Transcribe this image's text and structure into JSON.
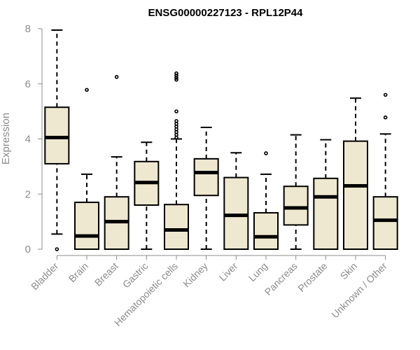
{
  "chart_data": {
    "type": "box",
    "title": "ENSG00000227123 - RPL12P44",
    "xlabel": "",
    "ylabel": "Expression",
    "ylim": [
      0,
      8
    ],
    "yticks": [
      0,
      2,
      4,
      6,
      8
    ],
    "grid": false,
    "categories": [
      "Bladder",
      "Brain",
      "Breast",
      "Gastric",
      "Hematopoietic cells",
      "Kidney",
      "Liver",
      "Lung",
      "Pancreas",
      "Prostate",
      "Skin",
      "Unknown / Other"
    ],
    "boxes": [
      {
        "category": "Bladder",
        "min": 0.55,
        "q1": 3.1,
        "median": 4.05,
        "q3": 5.15,
        "max": 7.95,
        "outliers": [
          0
        ]
      },
      {
        "category": "Brain",
        "min": 0,
        "q1": 0,
        "median": 0.48,
        "q3": 1.7,
        "max": 2.72,
        "outliers": [
          5.78
        ]
      },
      {
        "category": "Breast",
        "min": 0,
        "q1": 0,
        "median": 1.0,
        "q3": 1.9,
        "max": 3.35,
        "outliers": [
          6.25
        ]
      },
      {
        "category": "Gastric",
        "min": 0,
        "q1": 1.6,
        "median": 2.42,
        "q3": 3.18,
        "max": 3.88,
        "outliers": []
      },
      {
        "category": "Hematopoietic cells",
        "min": 0,
        "q1": 0,
        "median": 0.7,
        "q3": 1.62,
        "max": 4.0,
        "outliers": [
          4.05,
          4.15,
          4.25,
          4.35,
          4.45,
          4.55,
          4.65,
          5.0,
          6.15,
          6.22,
          6.3,
          6.38
        ]
      },
      {
        "category": "Kidney",
        "min": 0,
        "q1": 1.95,
        "median": 2.78,
        "q3": 3.28,
        "max": 4.42,
        "outliers": []
      },
      {
        "category": "Liver",
        "min": 0,
        "q1": 0,
        "median": 1.23,
        "q3": 2.6,
        "max": 3.5,
        "outliers": []
      },
      {
        "category": "Lung",
        "min": 0,
        "q1": 0,
        "median": 0.45,
        "q3": 1.32,
        "max": 2.72,
        "outliers": [
          3.48
        ]
      },
      {
        "category": "Pancreas",
        "min": 0,
        "q1": 0.88,
        "median": 1.5,
        "q3": 2.28,
        "max": 4.15,
        "outliers": []
      },
      {
        "category": "Prostate",
        "min": 0,
        "q1": 0,
        "median": 1.9,
        "q3": 2.57,
        "max": 3.97,
        "outliers": []
      },
      {
        "category": "Skin",
        "min": 0,
        "q1": 0,
        "median": 2.3,
        "q3": 3.92,
        "max": 5.48,
        "outliers": []
      },
      {
        "category": "Unknown / Other",
        "min": 0,
        "q1": 0,
        "median": 1.05,
        "q3": 1.9,
        "max": 4.18,
        "outliers": [
          4.78,
          5.6
        ]
      }
    ]
  }
}
